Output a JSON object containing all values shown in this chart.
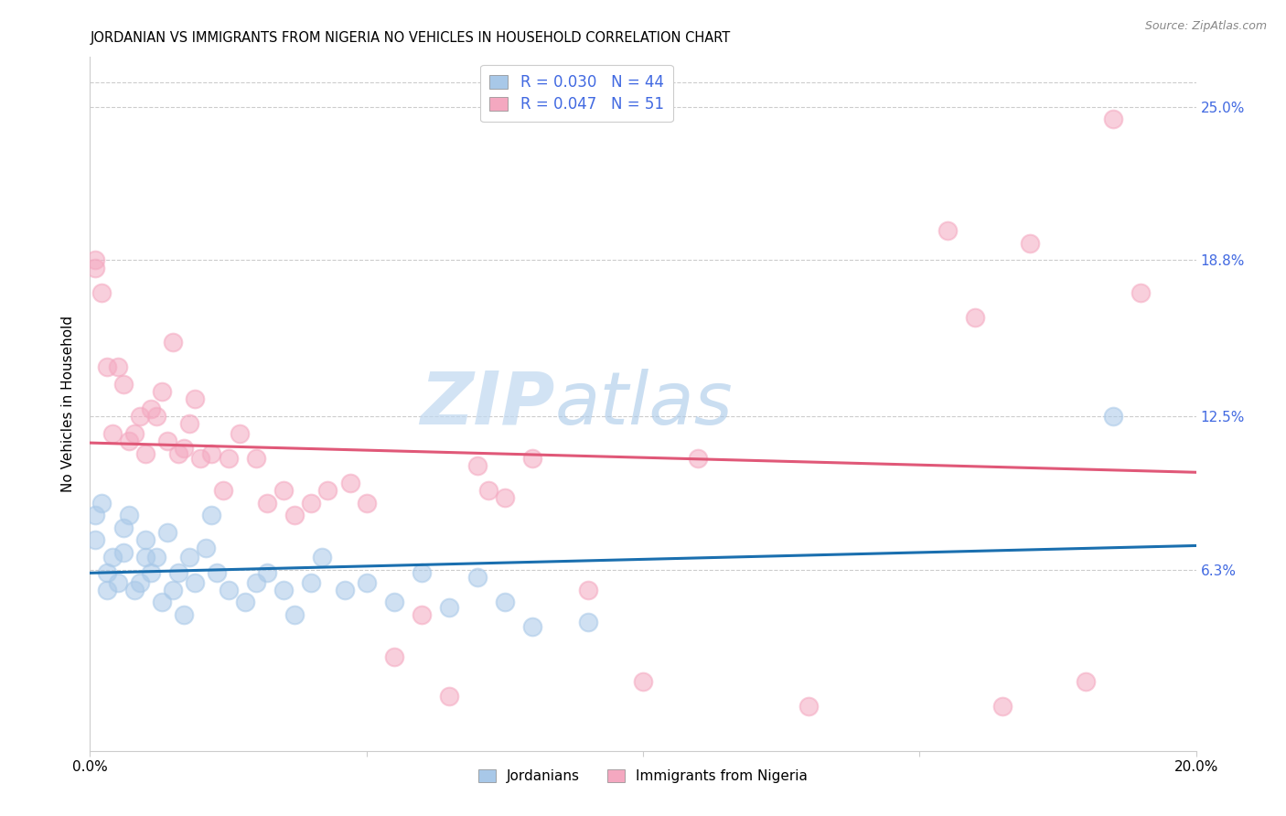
{
  "title": "JORDANIAN VS IMMIGRANTS FROM NIGERIA NO VEHICLES IN HOUSEHOLD CORRELATION CHART",
  "source": "Source: ZipAtlas.com",
  "ylabel": "No Vehicles in Household",
  "ytick_labels": [
    "6.3%",
    "12.5%",
    "18.8%",
    "25.0%"
  ],
  "ytick_values": [
    0.063,
    0.125,
    0.188,
    0.25
  ],
  "xlim": [
    0.0,
    0.2
  ],
  "ylim": [
    -0.01,
    0.27
  ],
  "blue_color": "#a8c8e8",
  "pink_color": "#f4a8c0",
  "blue_line_color": "#1a6faf",
  "pink_line_color": "#e05878",
  "text_color": "#4169E1",
  "legend_blue_label": "R = 0.030   N = 44",
  "legend_pink_label": "R = 0.047   N = 51",
  "bottom_legend_blue": "Jordanians",
  "bottom_legend_pink": "Immigrants from Nigeria",
  "jordanians_x": [
    0.001,
    0.001,
    0.002,
    0.003,
    0.003,
    0.004,
    0.005,
    0.006,
    0.006,
    0.007,
    0.008,
    0.009,
    0.01,
    0.01,
    0.011,
    0.012,
    0.013,
    0.014,
    0.015,
    0.016,
    0.017,
    0.018,
    0.019,
    0.021,
    0.022,
    0.023,
    0.025,
    0.028,
    0.03,
    0.032,
    0.035,
    0.037,
    0.04,
    0.042,
    0.046,
    0.05,
    0.055,
    0.06,
    0.065,
    0.07,
    0.075,
    0.08,
    0.09,
    0.185
  ],
  "jordanians_y": [
    0.075,
    0.085,
    0.09,
    0.055,
    0.062,
    0.068,
    0.058,
    0.08,
    0.07,
    0.085,
    0.055,
    0.058,
    0.068,
    0.075,
    0.062,
    0.068,
    0.05,
    0.078,
    0.055,
    0.062,
    0.045,
    0.068,
    0.058,
    0.072,
    0.085,
    0.062,
    0.055,
    0.05,
    0.058,
    0.062,
    0.055,
    0.045,
    0.058,
    0.068,
    0.055,
    0.058,
    0.05,
    0.062,
    0.048,
    0.06,
    0.05,
    0.04,
    0.042,
    0.125
  ],
  "nigeria_x": [
    0.001,
    0.001,
    0.002,
    0.003,
    0.004,
    0.005,
    0.006,
    0.007,
    0.008,
    0.009,
    0.01,
    0.011,
    0.012,
    0.013,
    0.014,
    0.015,
    0.016,
    0.017,
    0.018,
    0.019,
    0.02,
    0.022,
    0.024,
    0.025,
    0.027,
    0.03,
    0.032,
    0.035,
    0.037,
    0.04,
    0.043,
    0.047,
    0.05,
    0.055,
    0.06,
    0.065,
    0.07,
    0.072,
    0.075,
    0.08,
    0.09,
    0.1,
    0.11,
    0.13,
    0.155,
    0.16,
    0.165,
    0.17,
    0.18,
    0.185,
    0.19
  ],
  "nigeria_y": [
    0.188,
    0.185,
    0.175,
    0.145,
    0.118,
    0.145,
    0.138,
    0.115,
    0.118,
    0.125,
    0.11,
    0.128,
    0.125,
    0.135,
    0.115,
    0.155,
    0.11,
    0.112,
    0.122,
    0.132,
    0.108,
    0.11,
    0.095,
    0.108,
    0.118,
    0.108,
    0.09,
    0.095,
    0.085,
    0.09,
    0.095,
    0.098,
    0.09,
    0.028,
    0.045,
    0.012,
    0.105,
    0.095,
    0.092,
    0.108,
    0.055,
    0.018,
    0.108,
    0.008,
    0.2,
    0.165,
    0.008,
    0.195,
    0.018,
    0.245,
    0.175
  ]
}
